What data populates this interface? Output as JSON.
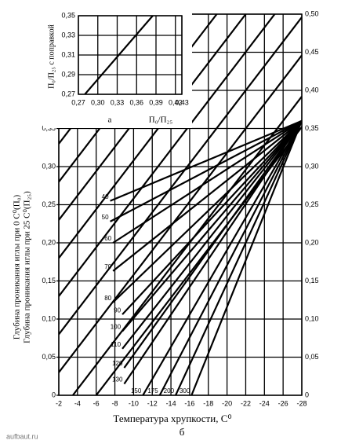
{
  "chart_data": [
    {
      "type": "line",
      "caption": "б",
      "xlabel": "Температура хрупкости, С⁰",
      "ylabel": [
        "Глубина проникания иглы при 0 С⁰(П₀)",
        "Глубина проникания иглы при 25 С⁰(П₂₅)"
      ],
      "xlim": [
        -2,
        -28
      ],
      "ylim": [
        0,
        0.5
      ],
      "y2lim": [
        0,
        0.5
      ],
      "grid": true,
      "xticks": [
        -2,
        -4,
        -6,
        -8,
        -10,
        -12,
        -14,
        -16,
        -18,
        -20,
        -22,
        -24,
        -26,
        -28
      ],
      "yticks": [
        0,
        {
          "value": 0.05,
          "label": "0,05"
        },
        {
          "value": 0.1,
          "label": "0,10"
        },
        {
          "value": 0.15,
          "label": "0,15"
        },
        {
          "value": 0.2,
          "label": "0,20"
        },
        {
          "value": 0.25,
          "label": "0,25"
        },
        {
          "value": 0.3,
          "label": "0,30"
        },
        {
          "value": 0.35,
          "label": "0,35"
        }
      ],
      "y2ticks": [
        0,
        {
          "value": 0.05,
          "label": "0,05"
        },
        {
          "value": 0.1,
          "label": "0,10"
        },
        {
          "value": 0.15,
          "label": "0,15"
        },
        {
          "value": 0.2,
          "label": "0,20"
        },
        {
          "value": 0.25,
          "label": "0,25"
        },
        {
          "value": 0.3,
          "label": "0,30"
        },
        {
          "value": 0.35,
          "label": "0,35"
        },
        {
          "value": 0.4,
          "label": "0,40"
        },
        {
          "value": 0.45,
          "label": "0,45"
        },
        {
          "value": 0.5,
          "label": "0,50"
        }
      ],
      "series": [
        {
          "name": "40",
          "color": "#000000",
          "x": [
            -7.5,
            -28
          ],
          "values": [
            0.255,
            0.36
          ]
        },
        {
          "name": "50",
          "color": "#000000",
          "x": [
            -7.5,
            -28
          ],
          "values": [
            0.228,
            0.36
          ]
        },
        {
          "name": "60",
          "color": "#000000",
          "x": [
            -7.8,
            -28
          ],
          "values": [
            0.2,
            0.36
          ]
        },
        {
          "name": "70",
          "color": "#000000",
          "x": [
            -7.8,
            -28
          ],
          "values": [
            0.163,
            0.36
          ]
        },
        {
          "name": "80",
          "color": "#000000",
          "x": [
            -7.8,
            -28
          ],
          "values": [
            0.122,
            0.36
          ]
        },
        {
          "name": "90",
          "color": "#000000",
          "x": [
            -8.8,
            -28
          ],
          "values": [
            0.106,
            0.36
          ]
        },
        {
          "name": "100",
          "color": "#000000",
          "x": [
            -8.8,
            -28
          ],
          "values": [
            0.084,
            0.36
          ]
        },
        {
          "name": "110",
          "color": "#000000",
          "x": [
            -8.8,
            -28
          ],
          "values": [
            0.061,
            0.36
          ]
        },
        {
          "name": "120",
          "color": "#000000",
          "x": [
            -9,
            -28
          ],
          "values": [
            0.036,
            0.36
          ]
        },
        {
          "name": "130",
          "color": "#000000",
          "x": [
            -9,
            -28
          ],
          "values": [
            0.015,
            0.36
          ]
        },
        {
          "name": "150",
          "color": "#000000",
          "x": [
            -11,
            -28
          ],
          "values": [
            0,
            0.36
          ]
        },
        {
          "name": "175",
          "color": "#000000",
          "x": [
            -12.8,
            -28
          ],
          "values": [
            0,
            0.36
          ]
        },
        {
          "name": "200",
          "color": "#000000",
          "x": [
            -14.5,
            -28
          ],
          "values": [
            0,
            0.36
          ]
        },
        {
          "name": "300",
          "color": "#000000",
          "x": [
            -16.2,
            -28
          ],
          "values": [
            0,
            0.36
          ]
        },
        {
          "color": "#000000",
          "x": [
            -3.5,
            -28
          ],
          "values": [
            0,
            0.392
          ]
        },
        {
          "color": "#000000",
          "x": [
            -6,
            -28
          ],
          "values": [
            0,
            0.352
          ]
        },
        {
          "color": "#000000",
          "x": [
            -2,
            -28
          ],
          "values": [
            0.03,
            0.446
          ]
        },
        {
          "color": "#000000",
          "x": [
            -2,
            -28
          ],
          "values": [
            0.08,
            0.496
          ]
        },
        {
          "color": "#000000",
          "x": [
            -2,
            -25.1
          ],
          "values": [
            0.13,
            0.5
          ]
        },
        {
          "color": "#000000",
          "x": [
            -2,
            -22
          ],
          "values": [
            0.18,
            0.5
          ]
        },
        {
          "color": "#000000",
          "x": [
            -2,
            -18.9
          ],
          "values": [
            0.23,
            0.5
          ]
        },
        {
          "color": "#000000",
          "x": [
            -2,
            -15.75
          ],
          "values": [
            0.28,
            0.5
          ]
        },
        {
          "color": "#000000",
          "x": [
            -2,
            -12.6
          ],
          "values": [
            0.33,
            0.5
          ]
        }
      ]
    },
    {
      "type": "line",
      "caption": "а",
      "xlabel": "П₀/П₂₅",
      "ylabel": "П₀/П₂₅ с поправкой",
      "xlim": [
        0.27,
        0.43
      ],
      "ylim": [
        0.27,
        0.35
      ],
      "grid": true,
      "xticks": [
        {
          "value": 0.27,
          "label": "0,27"
        },
        {
          "value": 0.3,
          "label": "0,30"
        },
        {
          "value": 0.33,
          "label": "0,33"
        },
        {
          "value": 0.36,
          "label": "0,36"
        },
        {
          "value": 0.39,
          "label": "0,39"
        },
        {
          "value": 0.42,
          "label": "0,42"
        },
        {
          "value": 0.43,
          "label": "0,43"
        }
      ],
      "yticks": [
        {
          "value": 0.27,
          "label": "0,27"
        },
        {
          "value": 0.29,
          "label": "0,29"
        },
        {
          "value": 0.31,
          "label": "0,31"
        },
        {
          "value": 0.33,
          "label": "0,33"
        },
        {
          "value": 0.35,
          "label": "0,35"
        }
      ],
      "series": [
        {
          "color": "#000000",
          "x": [
            0.28,
            0.385
          ],
          "values": [
            0.27,
            0.35
          ]
        }
      ]
    }
  ],
  "watermark": "aufbaut.ru"
}
